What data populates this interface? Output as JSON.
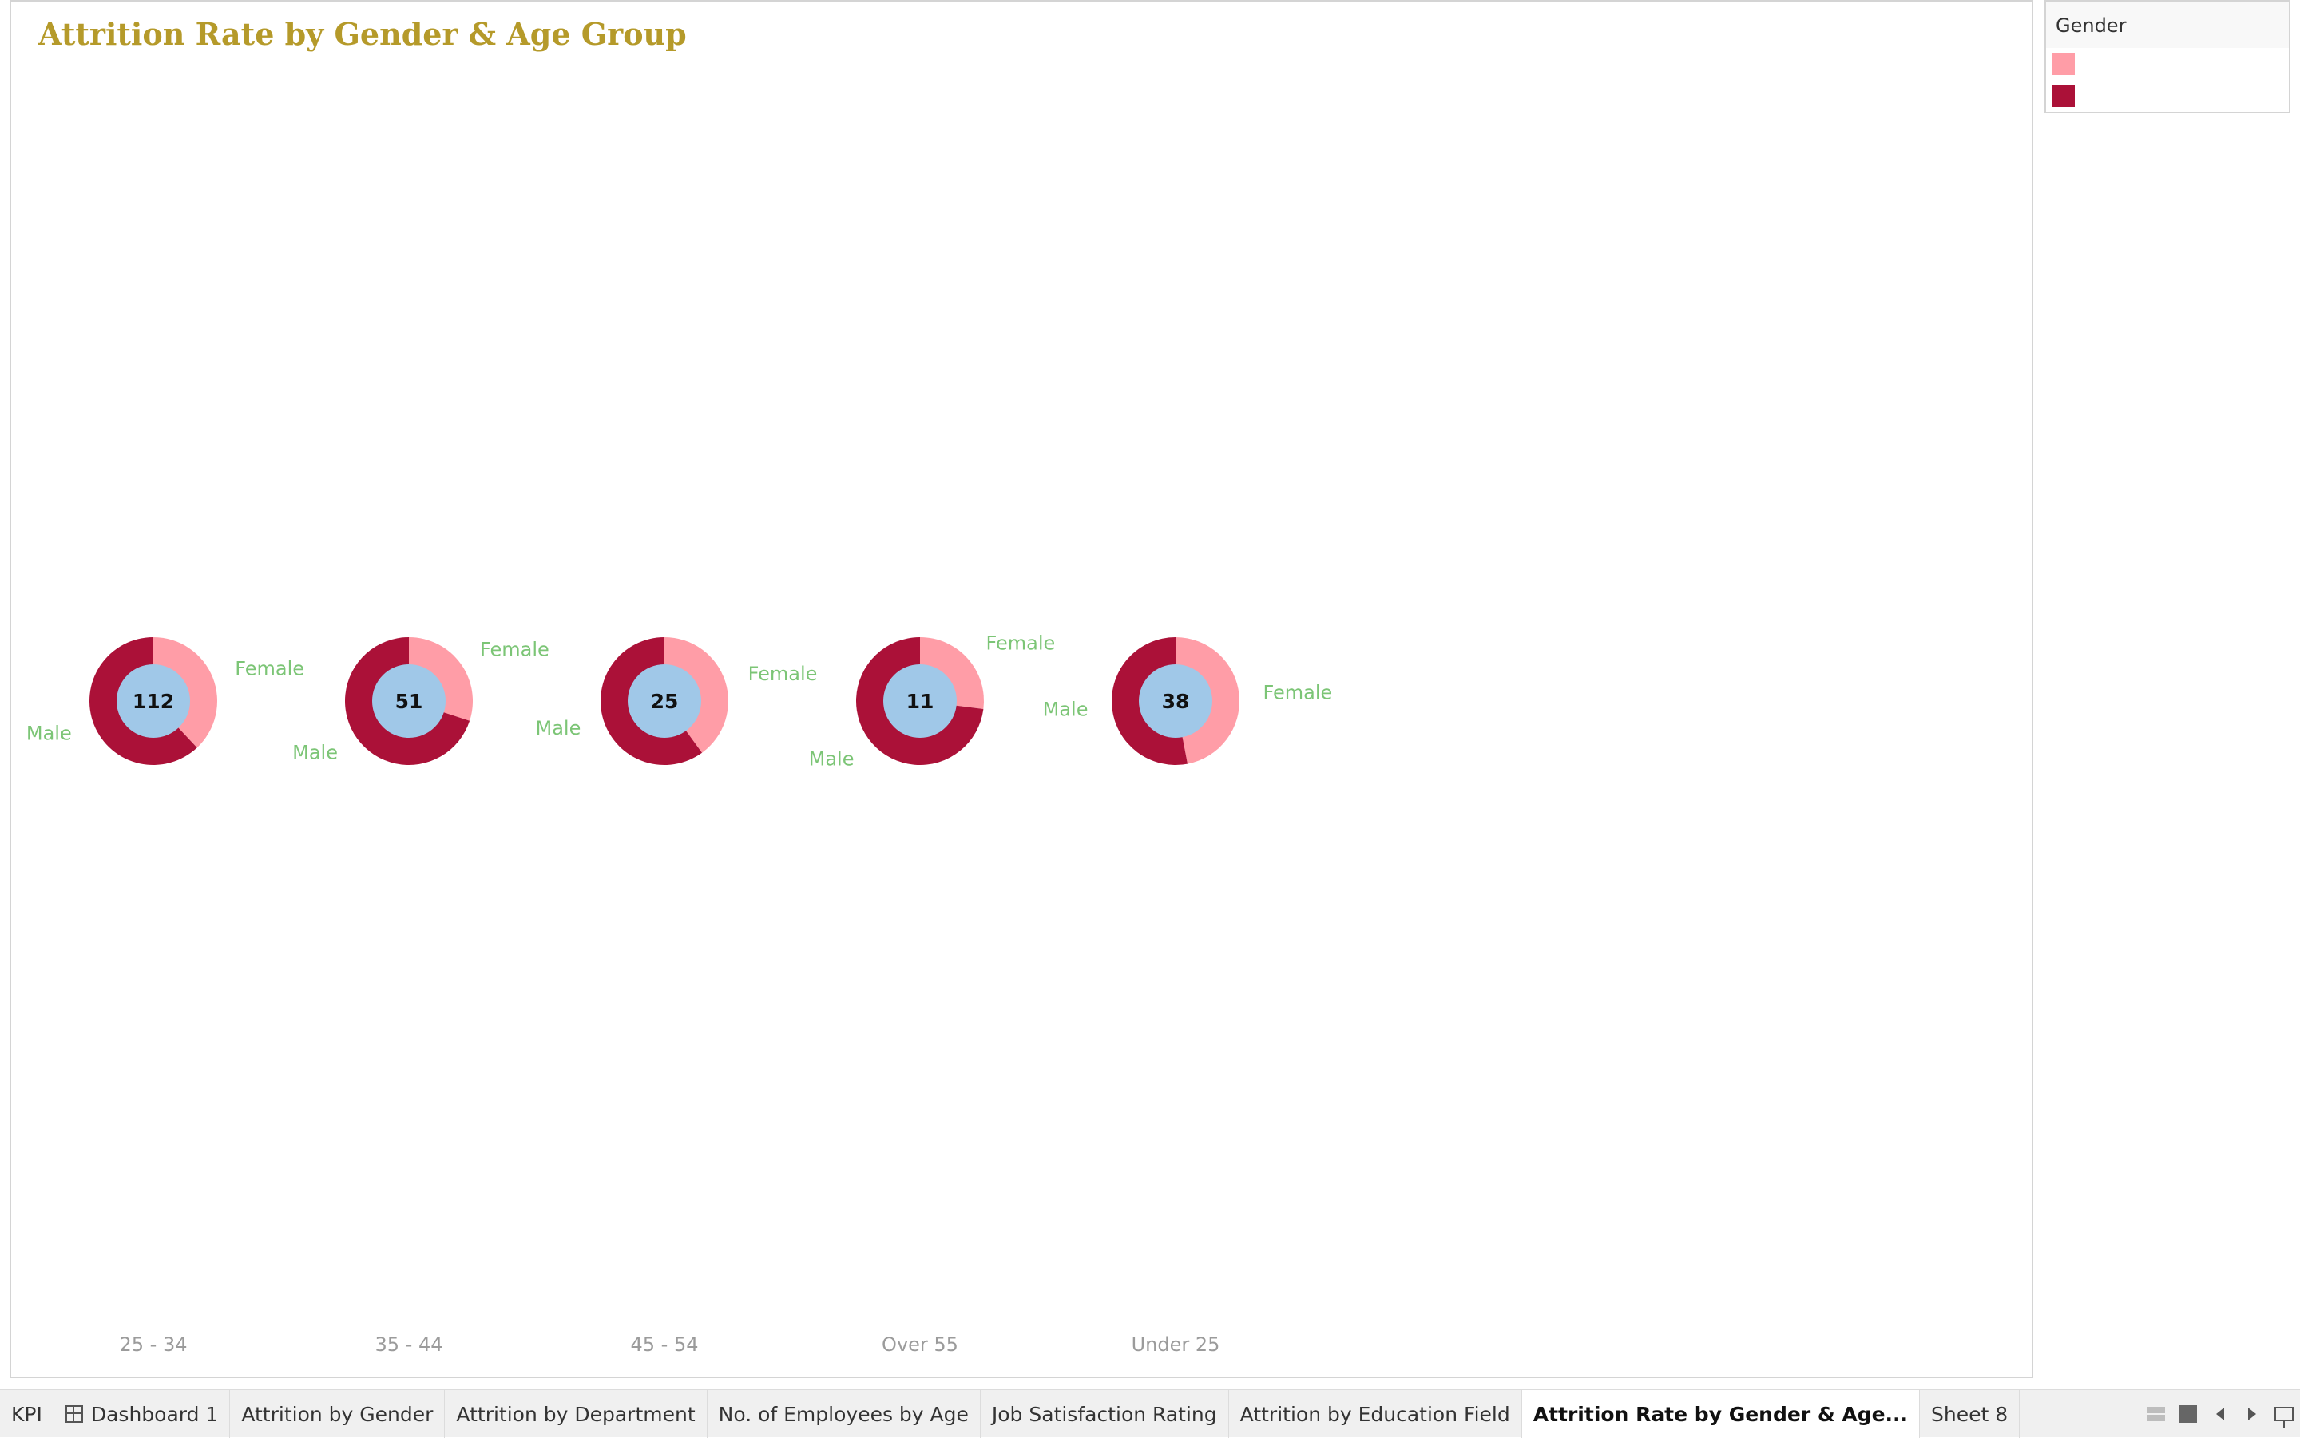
{
  "title": "Attrition Rate by Gender & Age Group",
  "legend": {
    "title": "Gender",
    "items": [
      {
        "label": "",
        "color": "#ff9da7"
      },
      {
        "label": "",
        "color": "#ab1138"
      }
    ]
  },
  "chart_data": {
    "type": "pie",
    "variant": "donut",
    "title": "Attrition Rate by Gender & Age Group",
    "colors": {
      "Female": "#ff9da7",
      "Male": "#ab1138",
      "center": "#a0c8e8"
    },
    "groups": [
      {
        "category": "25 - 34",
        "total": "112",
        "slices": [
          {
            "name": "Female",
            "share": 0.38
          },
          {
            "name": "Male",
            "share": 0.62
          }
        ]
      },
      {
        "category": "35 - 44",
        "total": "51",
        "slices": [
          {
            "name": "Female",
            "share": 0.3
          },
          {
            "name": "Male",
            "share": 0.7
          }
        ]
      },
      {
        "category": "45 - 54",
        "total": "25",
        "slices": [
          {
            "name": "Female",
            "share": 0.4
          },
          {
            "name": "Male",
            "share": 0.6
          }
        ]
      },
      {
        "category": "Over 55",
        "total": "11",
        "slices": [
          {
            "name": "Female",
            "share": 0.27
          },
          {
            "name": "Male",
            "share": 0.73
          }
        ]
      },
      {
        "category": "Under 25",
        "total": "38",
        "slices": [
          {
            "name": "Female",
            "share": 0.47
          },
          {
            "name": "Male",
            "share": 0.53
          }
        ]
      }
    ]
  },
  "tabs": [
    {
      "label": "KPI",
      "icon": "",
      "active": false
    },
    {
      "label": "Dashboard 1",
      "icon": "dashboard-icon",
      "active": false
    },
    {
      "label": "Attrition by Gender",
      "icon": "",
      "active": false
    },
    {
      "label": "Attrition by Department",
      "icon": "",
      "active": false
    },
    {
      "label": "No. of Employees by Age",
      "icon": "",
      "active": false
    },
    {
      "label": "Job Satisfaction Rating",
      "icon": "",
      "active": false
    },
    {
      "label": "Attrition by Education Field",
      "icon": "",
      "active": false
    },
    {
      "label": "Attrition Rate by Gender & Age...",
      "icon": "",
      "active": true
    },
    {
      "label": "Sheet 8",
      "icon": "",
      "active": false
    }
  ],
  "tab_controls": [
    "show-sheet-sorter-icon",
    "show-filmstrip-icon",
    "previous-sheet-icon",
    "next-sheet-icon",
    "presentation-mode-icon"
  ]
}
